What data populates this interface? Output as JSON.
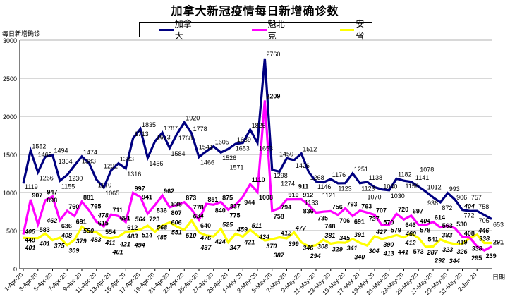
{
  "chart_data": {
    "type": "line",
    "title": "加拿大新冠疫情每日新增确诊数",
    "ylabel": "每日新增确诊",
    "xlabel": "日期",
    "ylim": [
      0,
      3000
    ],
    "yticks": [
      0,
      500,
      1000,
      1500,
      2000,
      2500,
      3000
    ],
    "grid": true,
    "legend_position": "top-center",
    "x_tick_labels": [
      "1-Apr-20",
      "3-Apr-20",
      "5-Apr-20",
      "7-Apr-20",
      "9-Apr-20",
      "11-Apr-20",
      "13-Apr-20",
      "15-Apr-20",
      "17-Apr-20",
      "19-Apr-20",
      "21-Apr-20",
      "23-Apr-20",
      "25-Apr-20",
      "27-Apr-20",
      "29-Apr-20",
      "1-May-20",
      "3-May-20",
      "5-May-20",
      "7-May-20",
      "9-May-20",
      "11-May-20",
      "13-May-20",
      "15-May-20",
      "17-May-20",
      "19-May-20",
      "21-May-20",
      "23-May-20",
      "25-May-20",
      "27-May-20",
      "29-May-20",
      "31-May-20",
      "2-Jun-20"
    ],
    "series": [
      {
        "name": "加拿大",
        "color": "#000080",
        "values": [
          1119,
          1552,
          1266,
          1469,
          1494,
          1155,
          1230,
          1354,
          1474,
          1383,
          1170,
          1065,
          1291,
          1383,
          1316,
          1713,
          1835,
          1456,
          1673,
          1787,
          1584,
          1768,
          1920,
          1778,
          1466,
          1541,
          1605,
          1526,
          1571,
          1639,
          1653,
          1825,
          1653,
          2760,
          1298,
          1274,
          1450,
          1426,
          1512,
          1268,
          1146,
          1133,
          1176,
          1121,
          1123,
          1251,
          1123,
          1138,
          1070,
          1040,
          1030,
          1182,
          1156,
          1141,
          1078,
          1012,
          936,
          872,
          993,
          906,
          772,
          757,
          758,
          705,
          653
        ]
      },
      {
        "name": "魁北克",
        "color": "#FF00FF",
        "values": [
          449,
          907,
          583,
          898,
          947,
          636,
          760,
          691,
          881,
          765,
          615,
          554,
          711,
          691,
          612,
          997,
          941,
          723,
          836,
          962,
          807,
          838,
          873,
          778,
          640,
          851,
          840,
          875,
          775,
          837,
          944,
          1110,
          1008,
          2209,
          758,
          794,
          910,
          911,
          912,
          836,
          735,
          748,
          756,
          706,
          793,
          691,
          763,
          737,
          707,
          570,
          579,
          720,
          646,
          697,
          578,
          573,
          614,
          541,
          563,
          530,
          419,
          408,
          295,
          239,
          291
        ]
      },
      {
        "name": "安省",
        "color": "#FFFF00",
        "values": [
          405,
          401,
          401,
          462,
          375,
          408,
          309,
          379,
          550,
          483,
          478,
          411,
          401,
          421,
          483,
          494,
          514,
          564,
          485,
          568,
          606,
          551,
          510,
          634,
          476,
          437,
          424,
          525,
          347,
          459,
          421,
          511,
          434,
          370,
          387,
          412,
          399,
          477,
          346,
          294,
          308,
          381,
          329,
          345,
          341,
          391,
          340,
          304,
          427,
          390,
          413,
          441,
          412,
          460,
          404,
          287,
          292,
          383,
          344,
          323,
          326,
          404,
          446,
          338,
          338
        ]
      }
    ]
  }
}
